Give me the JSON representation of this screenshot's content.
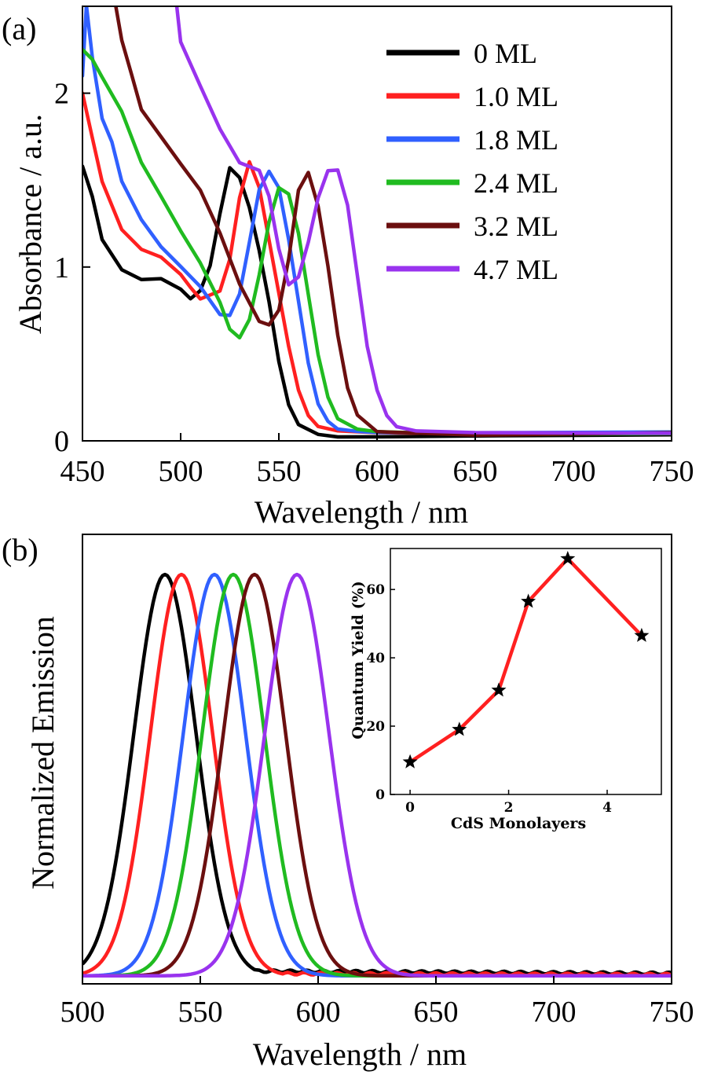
{
  "chart_data": [
    {
      "panel": "(a)",
      "type": "line",
      "xlabel": "Wavelength / nm",
      "ylabel": "Absorbance / a.u.",
      "xlim": [
        450,
        750
      ],
      "ylim": [
        0,
        2.5
      ],
      "xticks": [
        450,
        500,
        550,
        600,
        650,
        700,
        750
      ],
      "yticks": [
        0,
        1,
        2
      ],
      "legend_position": "top-right",
      "series": [
        {
          "name": "0 ML",
          "color": "#000000",
          "x": [
            450,
            455,
            460,
            470,
            480,
            490,
            500,
            505,
            510,
            515,
            520,
            525,
            530,
            535,
            540,
            545,
            550,
            555,
            560,
            570,
            580,
            600,
            650,
            750
          ],
          "y": [
            1.58,
            1.4,
            1.15,
            0.98,
            0.93,
            0.94,
            0.88,
            0.82,
            0.86,
            1.0,
            1.3,
            1.57,
            1.52,
            1.35,
            1.1,
            0.8,
            0.45,
            0.2,
            0.09,
            0.04,
            0.03,
            0.03,
            0.03,
            0.03
          ]
        },
        {
          "name": "1.0 ML",
          "color": "#ff2020",
          "x": [
            450,
            455,
            460,
            470,
            480,
            490,
            500,
            505,
            510,
            520,
            525,
            530,
            535,
            540,
            545,
            550,
            555,
            560,
            565,
            570,
            580,
            600,
            650,
            750
          ],
          "y": [
            2.0,
            1.75,
            1.5,
            1.22,
            1.1,
            1.05,
            0.95,
            0.88,
            0.82,
            0.87,
            1.05,
            1.4,
            1.6,
            1.45,
            1.15,
            0.85,
            0.55,
            0.3,
            0.15,
            0.08,
            0.05,
            0.04,
            0.04,
            0.05
          ]
        },
        {
          "name": "1.8 ML",
          "color": "#3060ff",
          "x": [
            450,
            452,
            455,
            460,
            465,
            470,
            480,
            490,
            500,
            510,
            520,
            525,
            530,
            535,
            540,
            545,
            550,
            555,
            560,
            565,
            570,
            575,
            580,
            590,
            600,
            650,
            750
          ],
          "y": [
            2.1,
            2.5,
            2.2,
            1.85,
            1.72,
            1.5,
            1.28,
            1.12,
            1.0,
            0.88,
            0.72,
            0.72,
            0.85,
            1.15,
            1.45,
            1.55,
            1.45,
            1.15,
            0.8,
            0.45,
            0.22,
            0.12,
            0.07,
            0.05,
            0.04,
            0.04,
            0.05
          ]
        },
        {
          "name": "2.4 ML",
          "color": "#20bb20",
          "x": [
            450,
            455,
            460,
            470,
            480,
            490,
            500,
            510,
            520,
            525,
            530,
            535,
            540,
            545,
            550,
            555,
            560,
            565,
            570,
            575,
            580,
            590,
            600,
            650,
            750
          ],
          "y": [
            2.25,
            2.2,
            2.1,
            1.9,
            1.6,
            1.4,
            1.2,
            1.02,
            0.8,
            0.65,
            0.6,
            0.7,
            0.95,
            1.25,
            1.45,
            1.42,
            1.2,
            0.85,
            0.5,
            0.25,
            0.12,
            0.06,
            0.05,
            0.04,
            0.05
          ]
        },
        {
          "name": "3.2 ML",
          "color": "#6b0f0f",
          "x": [
            467,
            470,
            475,
            480,
            490,
            500,
            510,
            520,
            530,
            540,
            545,
            550,
            555,
            560,
            565,
            570,
            575,
            580,
            585,
            590,
            600,
            650,
            750
          ],
          "y": [
            2.5,
            2.3,
            2.1,
            1.9,
            1.75,
            1.6,
            1.45,
            1.2,
            0.9,
            0.68,
            0.66,
            0.75,
            1.05,
            1.45,
            1.55,
            1.35,
            1.0,
            0.6,
            0.3,
            0.15,
            0.06,
            0.04,
            0.05
          ]
        },
        {
          "name": "4.7 ML",
          "color": "#9933ee",
          "x": [
            498,
            500,
            510,
            520,
            530,
            540,
            545,
            550,
            555,
            560,
            565,
            570,
            575,
            580,
            585,
            590,
            595,
            600,
            605,
            610,
            620,
            650,
            750
          ],
          "y": [
            2.5,
            2.3,
            2.05,
            1.8,
            1.6,
            1.55,
            1.4,
            1.1,
            0.9,
            0.95,
            1.15,
            1.4,
            1.55,
            1.55,
            1.35,
            0.95,
            0.55,
            0.3,
            0.15,
            0.08,
            0.05,
            0.04,
            0.04
          ]
        }
      ]
    },
    {
      "panel": "(b)",
      "type": "line",
      "xlabel": "Wavelength / nm",
      "ylabel": "Normalized Emission",
      "xlim": [
        500,
        750
      ],
      "ylim": [
        -0.02,
        1.1
      ],
      "xticks": [
        500,
        550,
        600,
        650,
        700,
        750
      ],
      "series": [
        {
          "name": "0 ML",
          "color": "#000000",
          "peak": 535,
          "fwhm": 31,
          "tail": 0.013
        },
        {
          "name": "1.0 ML",
          "color": "#ff2020",
          "peak": 542,
          "fwhm": 31,
          "tail": 0.006
        },
        {
          "name": "1.8 ML",
          "color": "#3060ff",
          "peak": 556,
          "fwhm": 31,
          "tail": 0.0
        },
        {
          "name": "2.4 ML",
          "color": "#20bb20",
          "peak": 564,
          "fwhm": 31,
          "tail": 0.0
        },
        {
          "name": "3.2 ML",
          "color": "#6b0f0f",
          "peak": 573,
          "fwhm": 31,
          "tail": 0.0
        },
        {
          "name": "4.7 ML",
          "color": "#9933ee",
          "peak": 591,
          "fwhm": 32,
          "tail": 0.0
        }
      ]
    },
    {
      "panel": "(b) inset",
      "type": "scatter",
      "xlabel": "CdS Monolayers",
      "ylabel": "Quantum Yield (%)",
      "xlim": [
        -0.4,
        5.1
      ],
      "ylim": [
        0,
        72
      ],
      "xticks": [
        0,
        2,
        4
      ],
      "yticks": [
        0,
        20,
        40,
        60
      ],
      "marker": "star",
      "line_color": "#ff2020",
      "x": [
        0,
        1.0,
        1.8,
        2.4,
        3.2,
        4.7
      ],
      "y": [
        9.5,
        19,
        30.5,
        56.5,
        69,
        46.5
      ]
    }
  ]
}
